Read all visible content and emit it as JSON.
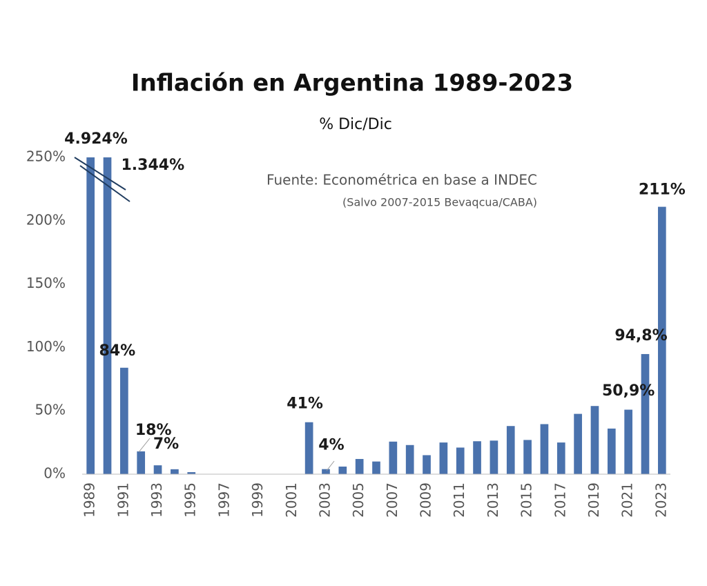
{
  "chart_data": {
    "type": "bar",
    "title": "Inflación en Argentina 1989-2023",
    "subtitle": "% Dic/Dic",
    "annotations": [
      "Fuente: Econométrica en base a INDEC",
      "(Salvo 2007-2015 Bevaqcua/CABA)"
    ],
    "categories": [
      "1989",
      null,
      "1991",
      null,
      "1993",
      null,
      "1995",
      null,
      "1997",
      null,
      "1999",
      null,
      "2001",
      null,
      "2003",
      null,
      "2005",
      null,
      "2007",
      null,
      "2009",
      null,
      "2011",
      null,
      "2013",
      null,
      "2015",
      null,
      "2017",
      null,
      "2019",
      null,
      "2021",
      null,
      "2023"
    ],
    "values": [
      4924,
      1344,
      84,
      18,
      7,
      3.9,
      1.6,
      0,
      0,
      0,
      0,
      0,
      0,
      41,
      4,
      6,
      12,
      10,
      25.7,
      23,
      15,
      25,
      21,
      26,
      26.5,
      38,
      27,
      39.5,
      25,
      47.6,
      53.8,
      36,
      50.9,
      94.8,
      211
    ],
    "value_labels": [
      "4.924%",
      "1.344%",
      "84%",
      "18%",
      "7%",
      null,
      null,
      null,
      null,
      null,
      null,
      null,
      null,
      "41%",
      "4%",
      null,
      null,
      null,
      null,
      null,
      null,
      null,
      null,
      null,
      null,
      null,
      null,
      null,
      null,
      null,
      null,
      null,
      "50,9%",
      "94,8%",
      "211%"
    ],
    "color": "#4a72ad",
    "ylim": [
      0,
      250
    ],
    "yticks": [
      {
        "value": 0,
        "label": "0%"
      },
      {
        "value": 50,
        "label": "50%"
      },
      {
        "value": 100,
        "label": "100%"
      },
      {
        "value": 150,
        "label": "150%"
      },
      {
        "value": 200,
        "label": "200%"
      },
      {
        "value": 250,
        "label": "250%"
      }
    ],
    "grid": false
  }
}
